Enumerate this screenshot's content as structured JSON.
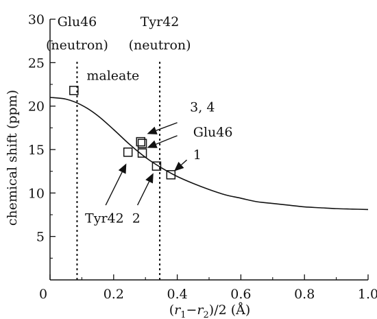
{
  "chart_data": {
    "type": "scatter",
    "xlabel": "(r1 − r2)/2 (Å)",
    "xlabel_parts": {
      "open": "(",
      "r": "r",
      "sub1": "1",
      "minus": "−",
      "sub2": "2",
      "close": ")/2 (Å)"
    },
    "ylabel": "chemical shift (ppm)",
    "xlim": [
      0,
      1.0
    ],
    "ylim": [
      0,
      30
    ],
    "x_ticks": [
      {
        "value": 0,
        "label": "0"
      },
      {
        "value": 0.2,
        "label": "0.2"
      },
      {
        "value": 0.4,
        "label": "0.4"
      },
      {
        "value": 0.6,
        "label": "0.6"
      },
      {
        "value": 0.8,
        "label": "0.8"
      },
      {
        "value": 1.0,
        "label": "1.0"
      }
    ],
    "y_ticks": [
      {
        "value": 5,
        "label": "5"
      },
      {
        "value": 10,
        "label": "10"
      },
      {
        "value": 15,
        "label": "15"
      },
      {
        "value": 20,
        "label": "20"
      },
      {
        "value": 25,
        "label": "25"
      },
      {
        "value": 30,
        "label": "30"
      }
    ],
    "grid": false,
    "points": [
      {
        "x": 0.075,
        "y": 21.8
      },
      {
        "x": 0.245,
        "y": 14.7
      },
      {
        "x": 0.285,
        "y": 15.9
      },
      {
        "x": 0.29,
        "y": 15.7
      },
      {
        "x": 0.29,
        "y": 14.6
      },
      {
        "x": 0.335,
        "y": 13.1
      },
      {
        "x": 0.38,
        "y": 12.1
      }
    ],
    "curve": {
      "x": [
        0,
        0.05,
        0.1,
        0.15,
        0.2,
        0.25,
        0.3,
        0.35,
        0.4,
        0.45,
        0.5,
        0.55,
        0.6,
        0.65,
        0.7,
        0.75,
        0.8,
        0.85,
        0.9,
        0.95,
        1.0
      ],
      "y": [
        21.0,
        20.8,
        20.1,
        18.9,
        17.3,
        15.6,
        14.1,
        12.9,
        11.9,
        11.1,
        10.4,
        9.8,
        9.4,
        9.0,
        8.8,
        8.6,
        8.4,
        8.3,
        8.2,
        8.15,
        8.1
      ]
    },
    "reference_lines": [
      {
        "x": 0.085,
        "label_line1": "Glu46",
        "label_line2": "(neutron)"
      },
      {
        "x": 0.345,
        "label_line1": "Tyr42",
        "label_line2": "(neutron)"
      }
    ],
    "annotations": [
      {
        "text": "maleate",
        "tx": 0.115,
        "ty": 23.0,
        "arrow": false
      },
      {
        "text": "3, 4",
        "tx": 0.44,
        "ty": 19.4,
        "arrow": true,
        "ax0": 0.4,
        "ay0": 18.1,
        "ax1": 0.305,
        "ay1": 16.8
      },
      {
        "text": "Glu46",
        "tx": 0.45,
        "ty": 16.5,
        "arrow": true,
        "ax0": 0.4,
        "ay0": 16.6,
        "ax1": 0.305,
        "ay1": 15.2
      },
      {
        "text": "1",
        "tx": 0.45,
        "ty": 13.9,
        "arrow": true,
        "ax0": 0.43,
        "ay0": 13.8,
        "ax1": 0.39,
        "ay1": 12.5
      },
      {
        "text": "Tyr42",
        "tx": 0.11,
        "ty": 6.6,
        "arrow": true,
        "ax0": 0.175,
        "ay0": 8.6,
        "ax1": 0.24,
        "ay1": 13.4
      },
      {
        "text": "2",
        "tx": 0.258,
        "ty": 6.6,
        "arrow": true,
        "ax0": 0.275,
        "ay0": 8.6,
        "ax1": 0.325,
        "ay1": 12.3
      }
    ]
  }
}
